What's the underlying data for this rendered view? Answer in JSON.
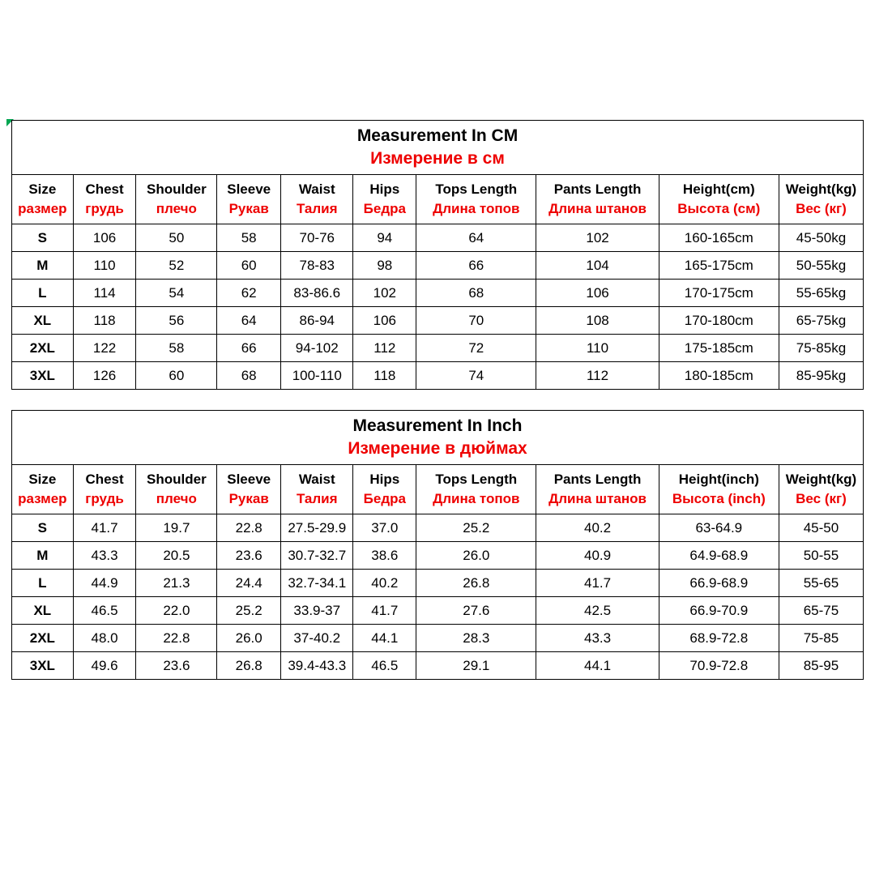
{
  "page": {
    "background": "#ffffff"
  },
  "colors": {
    "text_black": "#000000",
    "accent_red": "#ee0000",
    "border": "#000000",
    "corner_mark_green": "#00a651"
  },
  "icons": {
    "green_corner_mark": "small green triangle at top-left corner of first table"
  },
  "tables": [
    {
      "title_en": "Measurement In CM",
      "title_ru": "Измерение в см",
      "headers": [
        {
          "en": "Size",
          "ru": "размер"
        },
        {
          "en": "Chest",
          "ru": "грудь"
        },
        {
          "en": "Shoulder",
          "ru": "плечо"
        },
        {
          "en": "Sleeve",
          "ru": "Рукав"
        },
        {
          "en": "Waist",
          "ru": "Талия"
        },
        {
          "en": "Hips",
          "ru": "Бедра"
        },
        {
          "en": "Tops Length",
          "ru": "Длина топов"
        },
        {
          "en": "Pants Length",
          "ru": "Длина штанов"
        },
        {
          "en": "Height(cm)",
          "ru": "Высота (см)"
        },
        {
          "en": "Weight(kg)",
          "ru": "Вес (кг)"
        }
      ],
      "rows": [
        [
          "S",
          "106",
          "50",
          "58",
          "70-76",
          "94",
          "64",
          "102",
          "160-165cm",
          "45-50kg"
        ],
        [
          "M",
          "110",
          "52",
          "60",
          "78-83",
          "98",
          "66",
          "104",
          "165-175cm",
          "50-55kg"
        ],
        [
          "L",
          "114",
          "54",
          "62",
          "83-86.6",
          "102",
          "68",
          "106",
          "170-175cm",
          "55-65kg"
        ],
        [
          "XL",
          "118",
          "56",
          "64",
          "86-94",
          "106",
          "70",
          "108",
          "170-180cm",
          "65-75kg"
        ],
        [
          "2XL",
          "122",
          "58",
          "66",
          "94-102",
          "112",
          "72",
          "110",
          "175-185cm",
          "75-85kg"
        ],
        [
          "3XL",
          "126",
          "60",
          "68",
          "100-110",
          "118",
          "74",
          "112",
          "180-185cm",
          "85-95kg"
        ]
      ]
    },
    {
      "title_en": "Measurement In Inch",
      "title_ru": "Измерение в дюймах",
      "headers": [
        {
          "en": "Size",
          "ru": "размер"
        },
        {
          "en": "Chest",
          "ru": "грудь"
        },
        {
          "en": "Shoulder",
          "ru": "плечо"
        },
        {
          "en": "Sleeve",
          "ru": "Рукав"
        },
        {
          "en": "Waist",
          "ru": "Талия"
        },
        {
          "en": "Hips",
          "ru": "Бедра"
        },
        {
          "en": "Tops Length",
          "ru": "Длина топов"
        },
        {
          "en": "Pants Length",
          "ru": "Длина штанов"
        },
        {
          "en": "Height(inch)",
          "ru": "Высота (inch)"
        },
        {
          "en": "Weight(kg)",
          "ru": "Вес (кг)"
        }
      ],
      "rows": [
        [
          "S",
          "41.7",
          "19.7",
          "22.8",
          "27.5-29.9",
          "37.0",
          "25.2",
          "40.2",
          "63-64.9",
          "45-50"
        ],
        [
          "M",
          "43.3",
          "20.5",
          "23.6",
          "30.7-32.7",
          "38.6",
          "26.0",
          "40.9",
          "64.9-68.9",
          "50-55"
        ],
        [
          "L",
          "44.9",
          "21.3",
          "24.4",
          "32.7-34.1",
          "40.2",
          "26.8",
          "41.7",
          "66.9-68.9",
          "55-65"
        ],
        [
          "XL",
          "46.5",
          "22.0",
          "25.2",
          "33.9-37",
          "41.7",
          "27.6",
          "42.5",
          "66.9-70.9",
          "65-75"
        ],
        [
          "2XL",
          "48.0",
          "22.8",
          "26.0",
          "37-40.2",
          "44.1",
          "28.3",
          "43.3",
          "68.9-72.8",
          "75-85"
        ],
        [
          "3XL",
          "49.6",
          "23.6",
          "26.8",
          "39.4-43.3",
          "46.5",
          "29.1",
          "44.1",
          "70.9-72.8",
          "85-95"
        ]
      ]
    }
  ],
  "layout_hints": {
    "column_width_percents": [
      7.2,
      7.4,
      9.5,
      7.5,
      8.5,
      7.4,
      14.1,
      14.4,
      14.1,
      9.9
    ]
  }
}
